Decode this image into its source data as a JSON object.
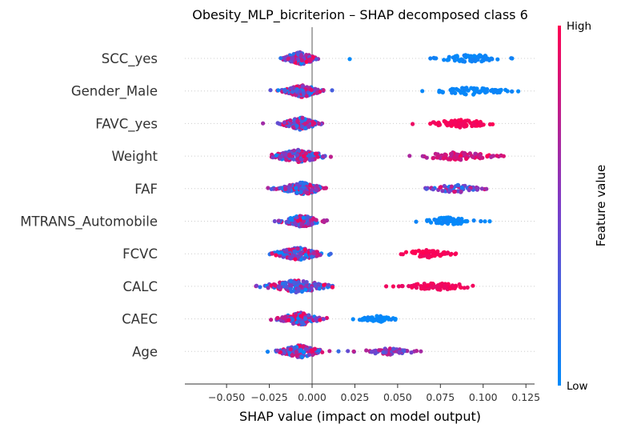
{
  "chart_data": {
    "type": "scatter",
    "title": "Obesity_MLP_bicriterion – SHAP decomposed class 6",
    "xlabel": "SHAP value (impact on model output)",
    "xlim": [
      -0.075,
      0.13
    ],
    "xticks": [
      {
        "value": -0.05,
        "label": "−0.050"
      },
      {
        "value": -0.025,
        "label": "−0.025"
      },
      {
        "value": 0.0,
        "label": "0.000"
      },
      {
        "value": 0.025,
        "label": "0.025"
      },
      {
        "value": 0.05,
        "label": "0.050"
      },
      {
        "value": 0.075,
        "label": "0.075"
      },
      {
        "value": 0.1,
        "label": "0.100"
      },
      {
        "value": 0.125,
        "label": "0.125"
      }
    ],
    "features": [
      "SCC_yes",
      "Gender_Male",
      "FAVC_yes",
      "Weight",
      "FAF",
      "MTRANS_Automobile",
      "FCVC",
      "CALC",
      "CAEC",
      "Age"
    ],
    "colorbar": {
      "high_label": "High",
      "low_label": "Low",
      "title": "Feature value",
      "high_color": "#ff0052",
      "low_color": "#008bfb"
    },
    "clusters": [
      {
        "feature": "SCC_yes",
        "groups": [
          {
            "center": -0.007,
            "spread": 0.011,
            "count": 150,
            "value_low": 0.05,
            "value_high": 1.0,
            "width": 8
          },
          {
            "center": 0.022,
            "spread": 0.0,
            "count": 1,
            "value_low": 0.0,
            "value_high": 0.0,
            "width": 1
          },
          {
            "center": 0.093,
            "spread": 0.023,
            "count": 70,
            "value_low": 0.0,
            "value_high": 0.08,
            "width": 5
          }
        ]
      },
      {
        "feature": "Gender_Male",
        "groups": [
          {
            "center": -0.006,
            "spread": 0.012,
            "count": 150,
            "value_low": 0.0,
            "value_high": 1.0,
            "width": 8
          },
          {
            "center": 0.093,
            "spread": 0.025,
            "count": 75,
            "value_low": 0.0,
            "value_high": 0.06,
            "width": 5
          }
        ]
      },
      {
        "feature": "FAVC_yes",
        "groups": [
          {
            "center": -0.007,
            "spread": 0.012,
            "count": 150,
            "value_low": 0.0,
            "value_high": 1.0,
            "width": 8
          },
          {
            "center": 0.087,
            "spread": 0.022,
            "count": 80,
            "value_low": 0.92,
            "value_high": 1.0,
            "width": 5
          }
        ]
      },
      {
        "feature": "Weight",
        "groups": [
          {
            "center": -0.008,
            "spread": 0.018,
            "count": 150,
            "value_low": 0.0,
            "value_high": 0.95,
            "width": 8
          },
          {
            "center": 0.085,
            "spread": 0.028,
            "count": 85,
            "value_low": 0.65,
            "value_high": 1.0,
            "width": 5
          }
        ]
      },
      {
        "feature": "FAF",
        "groups": [
          {
            "center": -0.006,
            "spread": 0.014,
            "count": 150,
            "value_low": 0.0,
            "value_high": 1.0,
            "width": 8
          },
          {
            "center": 0.084,
            "spread": 0.018,
            "count": 60,
            "value_low": 0.0,
            "value_high": 0.9,
            "width": 5
          }
        ]
      },
      {
        "feature": "MTRANS_Automobile",
        "groups": [
          {
            "center": -0.006,
            "spread": 0.012,
            "count": 150,
            "value_low": 0.0,
            "value_high": 1.0,
            "width": 8
          },
          {
            "center": 0.079,
            "spread": 0.019,
            "count": 70,
            "value_low": 0.0,
            "value_high": 0.06,
            "width": 5
          }
        ]
      },
      {
        "feature": "FCVC",
        "groups": [
          {
            "center": -0.008,
            "spread": 0.016,
            "count": 150,
            "value_low": 0.0,
            "value_high": 1.0,
            "width": 8
          },
          {
            "center": 0.067,
            "spread": 0.018,
            "count": 60,
            "value_low": 0.93,
            "value_high": 1.0,
            "width": 5
          }
        ]
      },
      {
        "feature": "CALC",
        "groups": [
          {
            "center": -0.009,
            "spread": 0.022,
            "count": 150,
            "value_low": 0.0,
            "value_high": 1.0,
            "width": 8
          },
          {
            "center": 0.072,
            "spread": 0.025,
            "count": 75,
            "value_low": 0.9,
            "value_high": 1.0,
            "width": 5
          }
        ]
      },
      {
        "feature": "CAEC",
        "groups": [
          {
            "center": -0.007,
            "spread": 0.014,
            "count": 140,
            "value_low": 0.0,
            "value_high": 1.0,
            "width": 8
          },
          {
            "center": 0.039,
            "spread": 0.014,
            "count": 55,
            "value_low": 0.0,
            "value_high": 0.06,
            "width": 4
          }
        ]
      },
      {
        "feature": "Age",
        "groups": [
          {
            "center": -0.007,
            "spread": 0.014,
            "count": 150,
            "value_low": 0.0,
            "value_high": 1.0,
            "width": 8
          },
          {
            "center": 0.045,
            "spread": 0.018,
            "count": 70,
            "value_low": 0.3,
            "value_high": 0.85,
            "width": 4
          }
        ]
      }
    ]
  }
}
